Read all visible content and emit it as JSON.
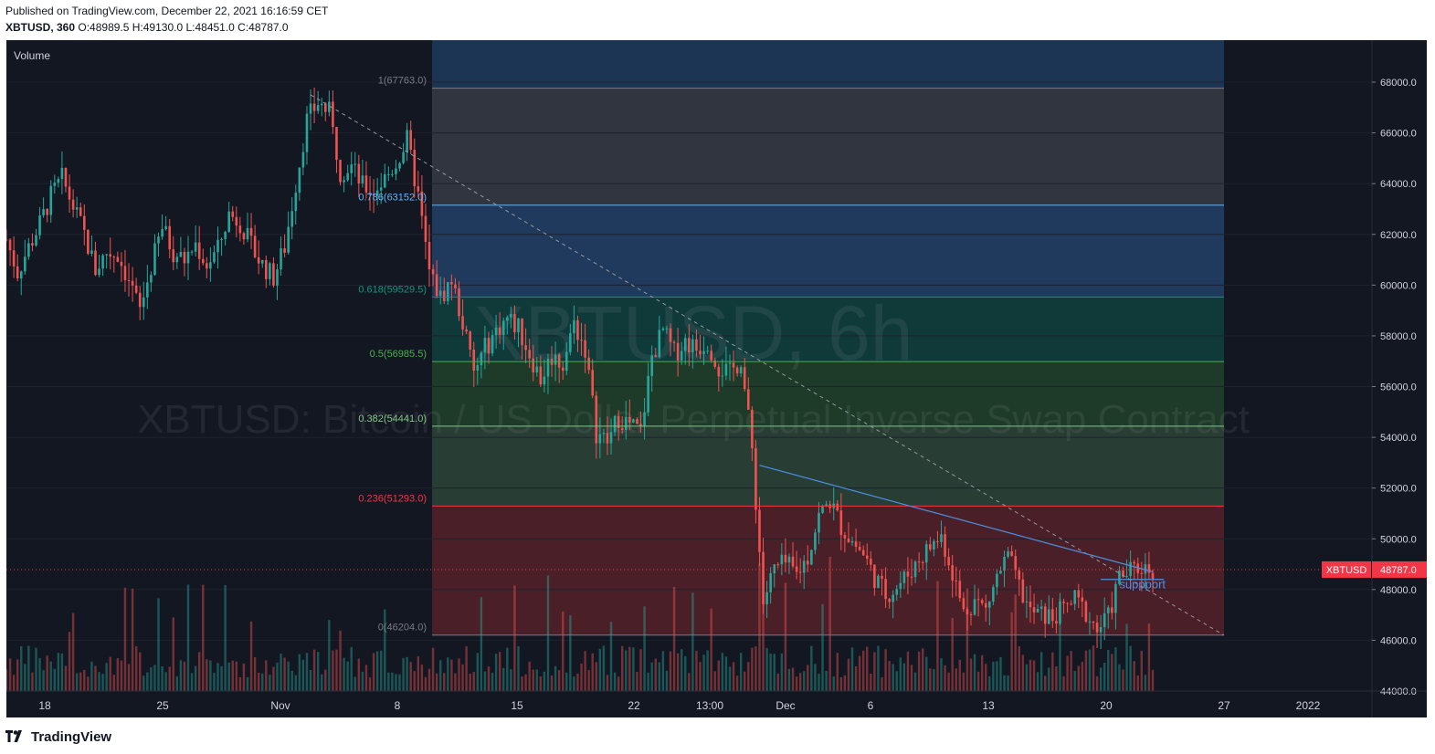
{
  "header": {
    "published": "Published on TradingView.com, December 22, 2021 16:16:59 CET",
    "symbol": "XBTUSD, 360",
    "ohlc": "O:48989.5 H:49130.0 L:48451.0 C:48787.0"
  },
  "pane": {
    "volume_label": "Volume"
  },
  "watermark": {
    "line1": "XBTUSD, 6h",
    "line2": "XBTUSD: Bitcoin / US Dollar Perpetual Inverse Swap Contract"
  },
  "footer": {
    "brand": "TradingView",
    "logo_icon": "tradingview-logo-icon"
  },
  "colors": {
    "background": "#131722",
    "up": "#26a69a",
    "down": "#ef5350",
    "fib_1": "#787b86",
    "fib_0786": "#64b5f6",
    "fib_0618": "#089981",
    "fib_05": "#4caf50",
    "fib_0382": "#81c784",
    "fib_0236": "#f23645",
    "fib_0": "#787b86",
    "trendline": "#4a90e2",
    "price_tag": "#f23645"
  },
  "chart_data": {
    "type": "candlestick",
    "symbol": "XBTUSD",
    "timeframe": "6h",
    "ylim": [
      44000,
      69000
    ],
    "y_ticks": [
      "68000.0",
      "66000.0",
      "64000.0",
      "62000.0",
      "60000.0",
      "58000.0",
      "56000.0",
      "54000.0",
      "52000.0",
      "50000.0",
      "48000.0",
      "46000.0",
      "44000.0"
    ],
    "x_ticks": [
      "18",
      "25",
      "Nov",
      "8",
      "15",
      "22",
      "13:00",
      "Dec",
      "6",
      "13",
      "20",
      "27",
      "2022"
    ],
    "last_price": {
      "label": "XBTUSD",
      "value": "48787.0"
    },
    "fib_levels": [
      {
        "level": "1",
        "price": 67763.0,
        "label": "1(67763.0)"
      },
      {
        "level": "0.786",
        "price": 63152.0,
        "label": "0.786(63152.0)"
      },
      {
        "level": "0.618",
        "price": 59529.5,
        "label": "0.618(59529.5)"
      },
      {
        "level": "0.5",
        "price": 56985.5,
        "label": "0.5(56985.5)"
      },
      {
        "level": "0.382",
        "price": 54441.0,
        "label": "0.382(54441.0)"
      },
      {
        "level": "0.236",
        "price": 51293.0,
        "label": "0.236(51293.0)"
      },
      {
        "level": "0",
        "price": 46204.0,
        "label": "0(46204.0)"
      }
    ],
    "annotations": [
      {
        "text": "suppport",
        "price": 48200
      }
    ],
    "price_path": [
      {
        "x": 0,
        "y": 61800
      },
      {
        "x": 3,
        "y": 60500
      },
      {
        "x": 6,
        "y": 61500
      },
      {
        "x": 9,
        "y": 62400
      },
      {
        "x": 12,
        "y": 63500
      },
      {
        "x": 15,
        "y": 64200
      },
      {
        "x": 18,
        "y": 63100
      },
      {
        "x": 21,
        "y": 62000
      },
      {
        "x": 24,
        "y": 60600
      },
      {
        "x": 27,
        "y": 61300
      },
      {
        "x": 30,
        "y": 61200
      },
      {
        "x": 33,
        "y": 60200
      },
      {
        "x": 36,
        "y": 59000
      },
      {
        "x": 39,
        "y": 60700
      },
      {
        "x": 42,
        "y": 62300
      },
      {
        "x": 45,
        "y": 61300
      },
      {
        "x": 48,
        "y": 61000
      },
      {
        "x": 51,
        "y": 61600
      },
      {
        "x": 54,
        "y": 60800
      },
      {
        "x": 57,
        "y": 61400
      },
      {
        "x": 60,
        "y": 62800
      },
      {
        "x": 63,
        "y": 62500
      },
      {
        "x": 66,
        "y": 61500
      },
      {
        "x": 69,
        "y": 60800
      },
      {
        "x": 72,
        "y": 60300
      },
      {
        "x": 75,
        "y": 61500
      },
      {
        "x": 78,
        "y": 64000
      },
      {
        "x": 81,
        "y": 66500
      },
      {
        "x": 84,
        "y": 67200
      },
      {
        "x": 87,
        "y": 66800
      },
      {
        "x": 90,
        "y": 64500
      },
      {
        "x": 93,
        "y": 64700
      },
      {
        "x": 96,
        "y": 63900
      },
      {
        "x": 99,
        "y": 63700
      },
      {
        "x": 102,
        "y": 64200
      },
      {
        "x": 105,
        "y": 64800
      },
      {
        "x": 108,
        "y": 65700
      },
      {
        "x": 111,
        "y": 63500
      },
      {
        "x": 114,
        "y": 60500
      },
      {
        "x": 117,
        "y": 59500
      },
      {
        "x": 120,
        "y": 60200
      },
      {
        "x": 123,
        "y": 58500
      },
      {
        "x": 126,
        "y": 56500
      },
      {
        "x": 129,
        "y": 57500
      },
      {
        "x": 132,
        "y": 58200
      },
      {
        "x": 135,
        "y": 58700
      },
      {
        "x": 138,
        "y": 58300
      },
      {
        "x": 141,
        "y": 57300
      },
      {
        "x": 144,
        "y": 56300
      },
      {
        "x": 147,
        "y": 57200
      },
      {
        "x": 150,
        "y": 56900
      },
      {
        "x": 153,
        "y": 58500
      },
      {
        "x": 156,
        "y": 57500
      },
      {
        "x": 159,
        "y": 54200
      },
      {
        "x": 162,
        "y": 53800
      },
      {
        "x": 165,
        "y": 54800
      },
      {
        "x": 168,
        "y": 54500
      },
      {
        "x": 171,
        "y": 54200
      },
      {
        "x": 174,
        "y": 57200
      },
      {
        "x": 177,
        "y": 58200
      },
      {
        "x": 180,
        "y": 57300
      },
      {
        "x": 183,
        "y": 57800
      },
      {
        "x": 186,
        "y": 57500
      },
      {
        "x": 189,
        "y": 57800
      },
      {
        "x": 192,
        "y": 56800
      },
      {
        "x": 195,
        "y": 56500
      },
      {
        "x": 198,
        "y": 57100
      },
      {
        "x": 201,
        "y": 53500
      },
      {
        "x": 204,
        "y": 47500
      },
      {
        "x": 207,
        "y": 48800
      },
      {
        "x": 210,
        "y": 49000
      },
      {
        "x": 213,
        "y": 48600
      },
      {
        "x": 216,
        "y": 49300
      },
      {
        "x": 219,
        "y": 50900
      },
      {
        "x": 222,
        "y": 51500
      },
      {
        "x": 225,
        "y": 50500
      },
      {
        "x": 228,
        "y": 49900
      },
      {
        "x": 231,
        "y": 49400
      },
      {
        "x": 234,
        "y": 48500
      },
      {
        "x": 237,
        "y": 47800
      },
      {
        "x": 240,
        "y": 48100
      },
      {
        "x": 243,
        "y": 48600
      },
      {
        "x": 246,
        "y": 49200
      },
      {
        "x": 249,
        "y": 49700
      },
      {
        "x": 252,
        "y": 50100
      },
      {
        "x": 255,
        "y": 48700
      },
      {
        "x": 258,
        "y": 47100
      },
      {
        "x": 261,
        "y": 47600
      },
      {
        "x": 264,
        "y": 47200
      },
      {
        "x": 267,
        "y": 48500
      },
      {
        "x": 270,
        "y": 49300
      },
      {
        "x": 273,
        "y": 48100
      },
      {
        "x": 276,
        "y": 47100
      },
      {
        "x": 279,
        "y": 47000
      },
      {
        "x": 282,
        "y": 46900
      },
      {
        "x": 285,
        "y": 47200
      },
      {
        "x": 288,
        "y": 47600
      },
      {
        "x": 291,
        "y": 47100
      },
      {
        "x": 294,
        "y": 46400
      },
      {
        "x": 297,
        "y": 46900
      },
      {
        "x": 300,
        "y": 48500
      },
      {
        "x": 303,
        "y": 48700
      },
      {
        "x": 306,
        "y": 48900
      },
      {
        "x": 309,
        "y": 48787
      }
    ]
  }
}
